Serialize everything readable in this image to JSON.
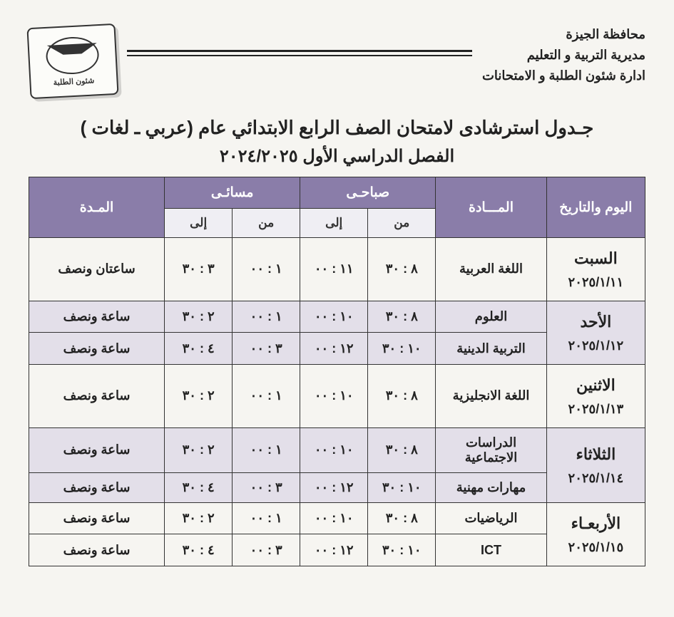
{
  "org": {
    "line1": "محافظة الجيزة",
    "line2": "مديرية التربية و التعليم",
    "line3": "ادارة شئون الطلبة و الامتحانات"
  },
  "logo_caption": "شئون الطلبة",
  "title_main": "جـدول استرشادى لامتحان الصف الرابع الابتدائي عام (عربي ـ لغات )",
  "title_sub": "الفصل الدراسي الأول ٢٠٢٤/٢٠٢٥",
  "headers": {
    "date": "اليوم والتاريخ",
    "subject": "المـــادة",
    "morning": "صباحـى",
    "evening": "مسائـى",
    "from": "من",
    "to": "إلى",
    "duration": "المـدة"
  },
  "colors": {
    "header_bg": "#8a7da9",
    "header_fg": "#ffffff",
    "subheader_bg": "#efeef3",
    "alt_row_bg": "#e3dfe9",
    "page_bg": "#f6f5f1",
    "border": "#333333"
  },
  "rows": [
    {
      "day": "السبت",
      "date": "٢٠٢٥/١/١١",
      "subject": "اللغة العربية",
      "m_from": "٨ : ٣٠",
      "m_to": "١١ : ٠٠",
      "e_from": "١ : ٠٠",
      "e_to": "٣ : ٣٠",
      "duration": "ساعتان ونصف",
      "alt": false,
      "rowspan": 1
    },
    {
      "day": "الأحد",
      "date": "٢٠٢٥/١/١٢",
      "subject": "العلوم",
      "m_from": "٨ : ٣٠",
      "m_to": "١٠ : ٠٠",
      "e_from": "١ : ٠٠",
      "e_to": "٢ : ٣٠",
      "duration": "ساعة ونصف",
      "alt": true,
      "rowspan": 2
    },
    {
      "day": "",
      "date": "",
      "subject": "التربية الدينية",
      "m_from": "١٠ : ٣٠",
      "m_to": "١٢ : ٠٠",
      "e_from": "٣ : ٠٠",
      "e_to": "٤ : ٣٠",
      "duration": "ساعة ونصف",
      "alt": true,
      "rowspan": 0
    },
    {
      "day": "الاثنين",
      "date": "٢٠٢٥/١/١٣",
      "subject": "اللغة الانجليزية",
      "m_from": "٨ : ٣٠",
      "m_to": "١٠ : ٠٠",
      "e_from": "١ : ٠٠",
      "e_to": "٢ : ٣٠",
      "duration": "ساعة ونصف",
      "alt": false,
      "rowspan": 1
    },
    {
      "day": "الثلاثاء",
      "date": "٢٠٢٥/١/١٤",
      "subject": "الدراسات الاجتماعية",
      "m_from": "٨ : ٣٠",
      "m_to": "١٠ : ٠٠",
      "e_from": "١ : ٠٠",
      "e_to": "٢ : ٣٠",
      "duration": "ساعة ونصف",
      "alt": true,
      "rowspan": 2
    },
    {
      "day": "",
      "date": "",
      "subject": "مهارات مهنية",
      "m_from": "١٠ : ٣٠",
      "m_to": "١٢ : ٠٠",
      "e_from": "٣ : ٠٠",
      "e_to": "٤ : ٣٠",
      "duration": "ساعة ونصف",
      "alt": true,
      "rowspan": 0
    },
    {
      "day": "الأربعـاء",
      "date": "٢٠٢٥/١/١٥",
      "subject": "الرياضيات",
      "m_from": "٨ : ٣٠",
      "m_to": "١٠ : ٠٠",
      "e_from": "١ : ٠٠",
      "e_to": "٢ : ٣٠",
      "duration": "ساعة ونصف",
      "alt": false,
      "rowspan": 2
    },
    {
      "day": "",
      "date": "",
      "subject": "ICT",
      "m_from": "١٠ : ٣٠",
      "m_to": "١٢ : ٠٠",
      "e_from": "٣ : ٠٠",
      "e_to": "٤ : ٣٠",
      "duration": "ساعة ونصف",
      "alt": false,
      "rowspan": 0
    }
  ]
}
